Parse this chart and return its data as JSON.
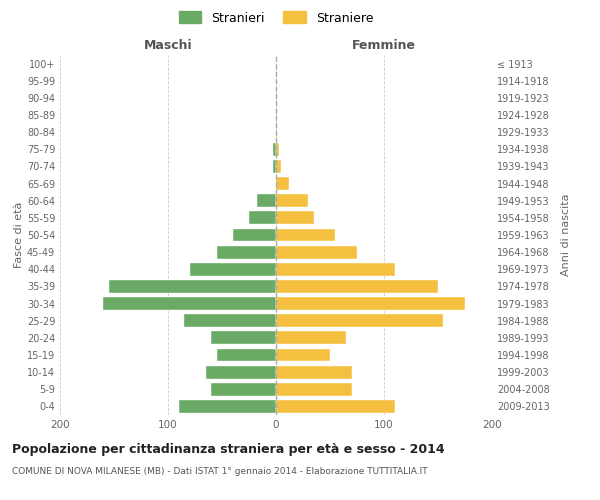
{
  "age_groups": [
    "0-4",
    "5-9",
    "10-14",
    "15-19",
    "20-24",
    "25-29",
    "30-34",
    "35-39",
    "40-44",
    "45-49",
    "50-54",
    "55-59",
    "60-64",
    "65-69",
    "70-74",
    "75-79",
    "80-84",
    "85-89",
    "90-94",
    "95-99",
    "100+"
  ],
  "birth_years": [
    "2009-2013",
    "2004-2008",
    "1999-2003",
    "1994-1998",
    "1989-1993",
    "1984-1988",
    "1979-1983",
    "1974-1978",
    "1969-1973",
    "1964-1968",
    "1959-1963",
    "1954-1958",
    "1949-1953",
    "1944-1948",
    "1939-1943",
    "1934-1938",
    "1929-1933",
    "1924-1928",
    "1919-1923",
    "1914-1918",
    "≤ 1913"
  ],
  "maschi": [
    90,
    60,
    65,
    55,
    60,
    85,
    160,
    155,
    80,
    55,
    40,
    25,
    18,
    0,
    3,
    3,
    0,
    0,
    0,
    0,
    0
  ],
  "femmine": [
    110,
    70,
    70,
    50,
    65,
    155,
    175,
    150,
    110,
    75,
    55,
    35,
    30,
    12,
    5,
    3,
    1,
    1,
    1,
    0,
    0
  ],
  "maschi_color": "#6aaa64",
  "femmine_color": "#f5c040",
  "title": "Popolazione per cittadinanza straniera per età e sesso - 2014",
  "subtitle": "COMUNE DI NOVA MILANESE (MB) - Dati ISTAT 1° gennaio 2014 - Elaborazione TUTTITALIA.IT",
  "ylabel_left": "Fasce di età",
  "ylabel_right": "Anni di nascita",
  "xlabel_left": "Maschi",
  "xlabel_right": "Femmine",
  "legend_stranieri": "Stranieri",
  "legend_straniere": "Straniere",
  "xlim": 200,
  "background_color": "#ffffff",
  "grid_color": "#cccccc"
}
